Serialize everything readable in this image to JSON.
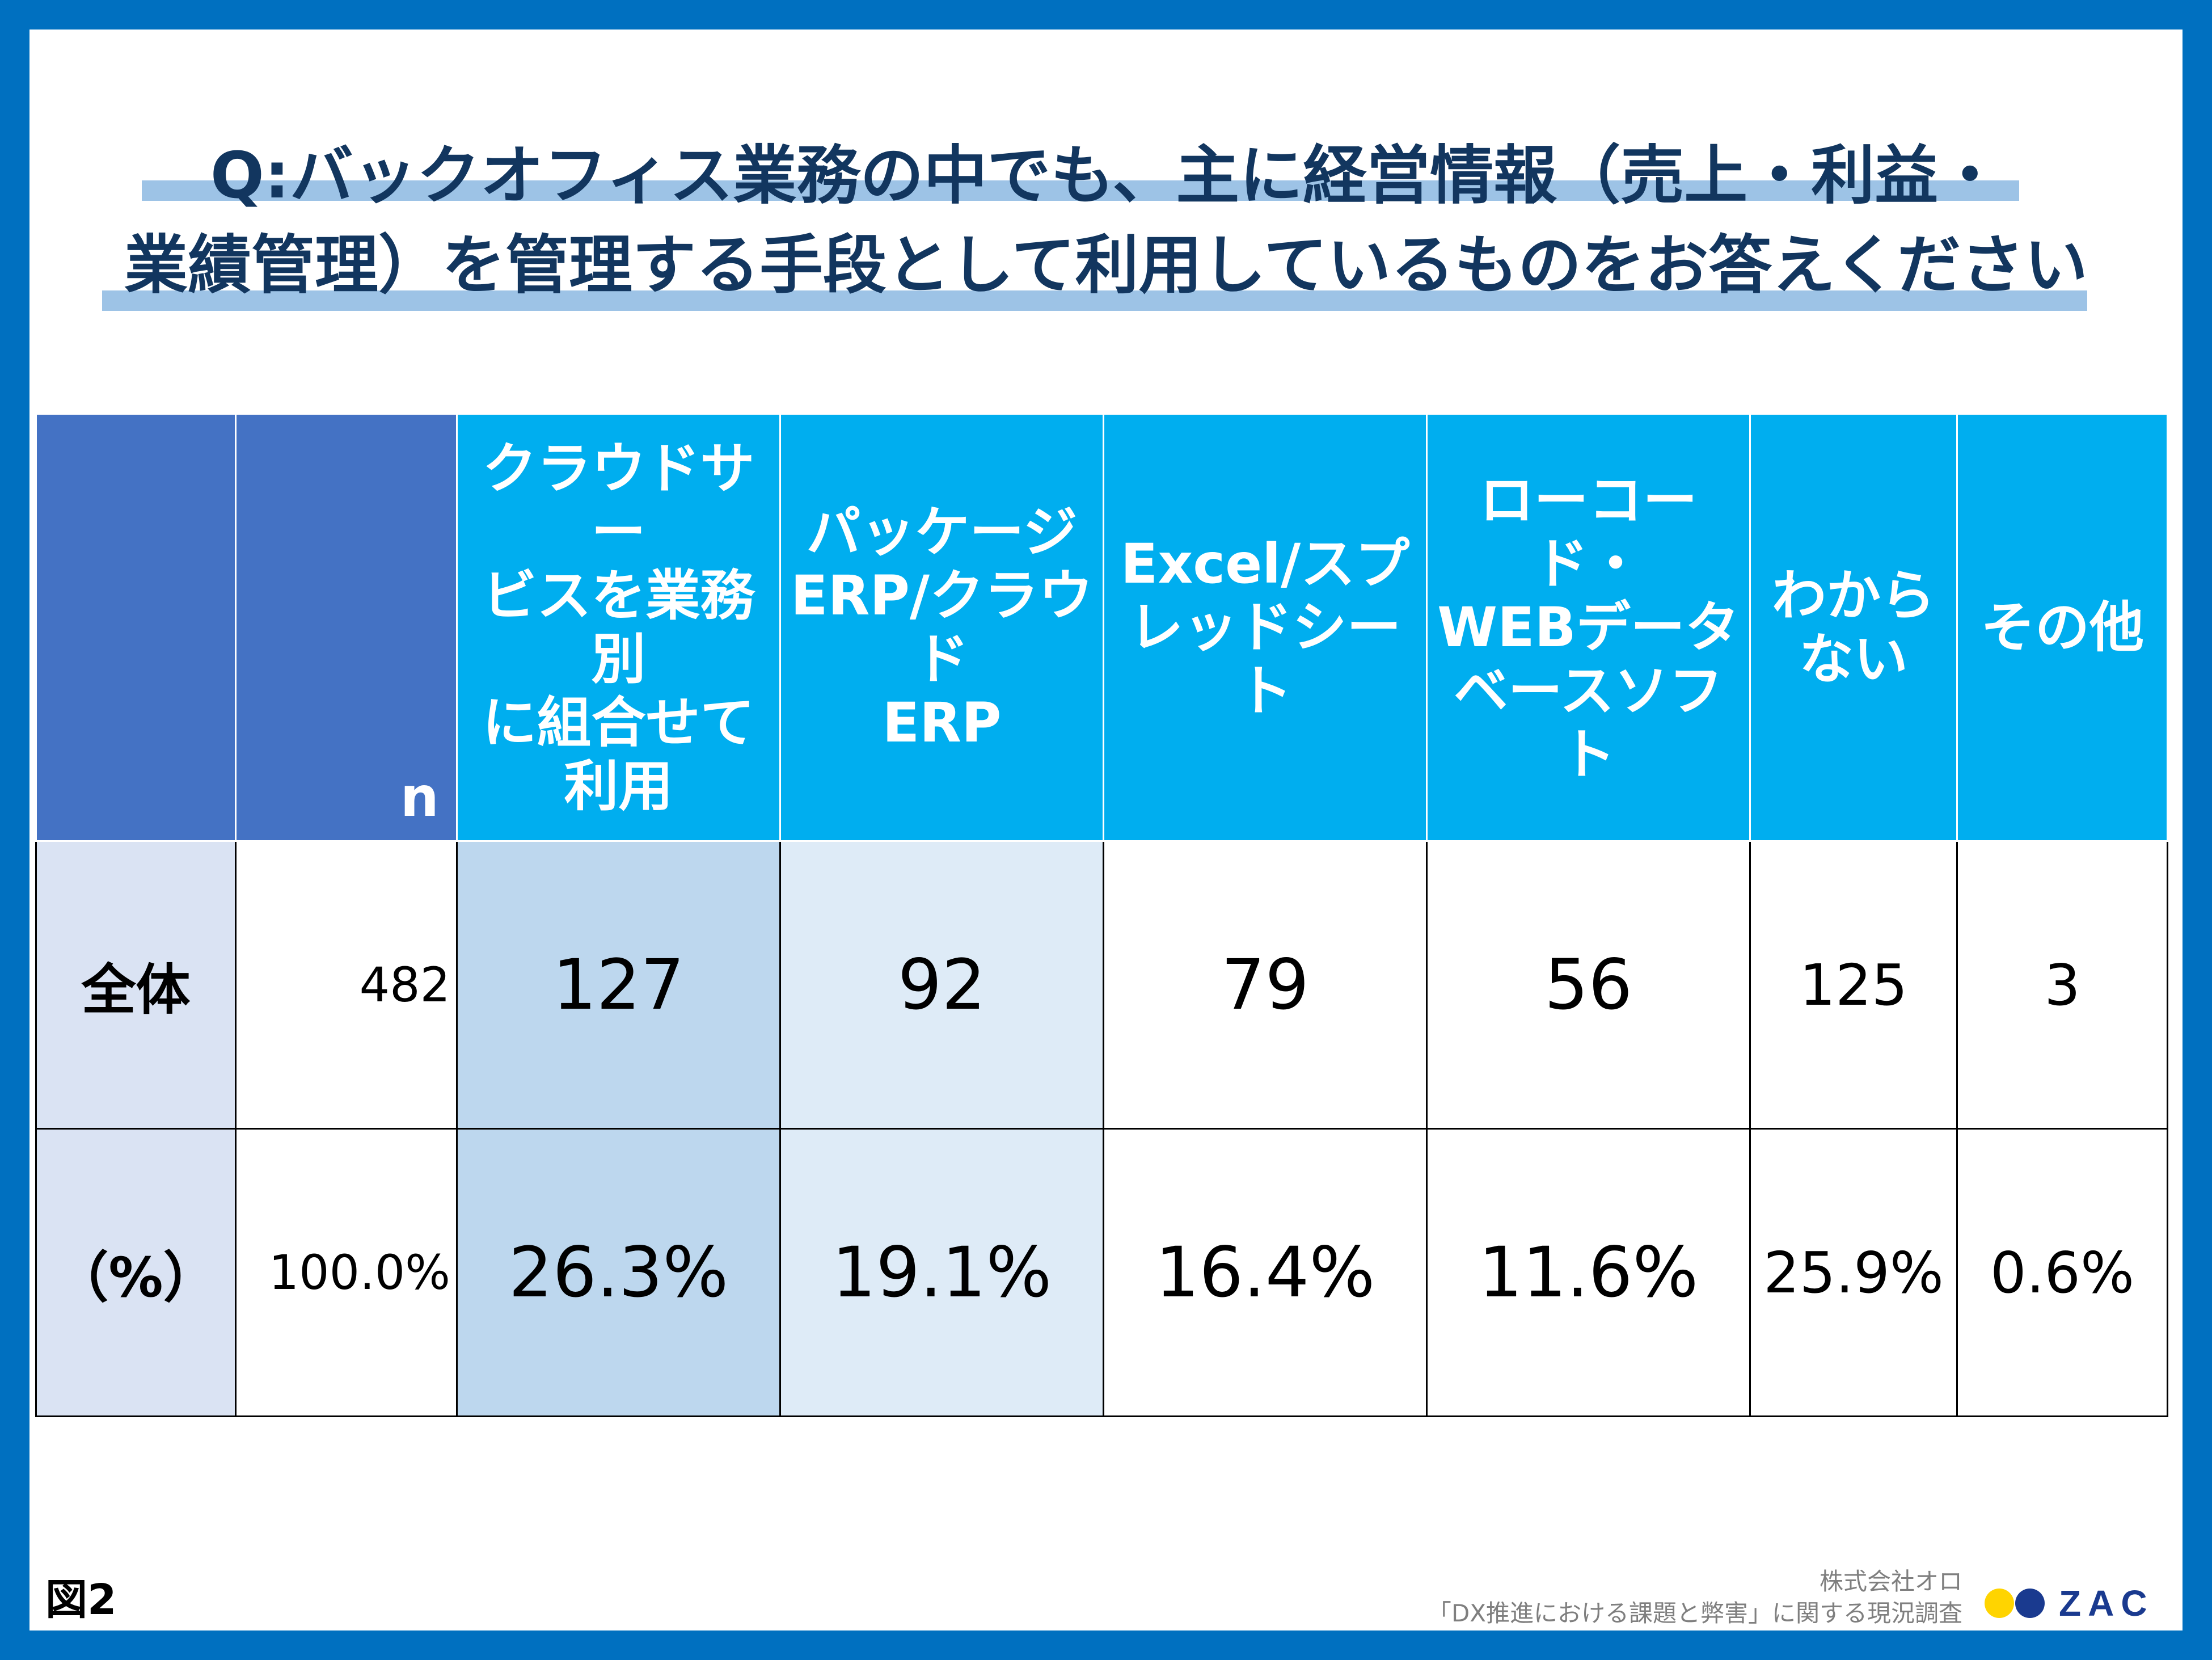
{
  "title": {
    "line1": "Q:バックオフィス業務の中でも、主に経営情報（売上・利益・",
    "line2": "業績管理）を管理する手段として利用しているものをお答えください"
  },
  "table": {
    "header": {
      "row_label": "",
      "n_label": "n",
      "columns": [
        "クラウドサービスを業務別に組合せて利用",
        "パッケージERP/クラウドERP",
        "Excel/スプレッドシート",
        "ローコード・WEBデータベースソフト",
        "わからない",
        "その他"
      ],
      "columns_display": [
        [
          "クラウドサー",
          "ビスを業務別",
          "に組合せて",
          "利用"
        ],
        [
          "パッケージ",
          "ERP/クラウド",
          "ERP"
        ],
        [
          "Excel/スプ",
          "レッドシート"
        ],
        [
          "ローコード・",
          "WEBデータ",
          "ベースソフト"
        ],
        [
          "わから",
          "ない"
        ],
        [
          "その他"
        ]
      ]
    },
    "rows": [
      {
        "label": "全体",
        "n": "482",
        "values": [
          "127",
          "92",
          "79",
          "56",
          "125",
          "3"
        ]
      },
      {
        "label": "（%）",
        "n": "100.0%",
        "values": [
          "26.3%",
          "19.1%",
          "16.4%",
          "11.6%",
          "25.9%",
          "0.6%"
        ]
      }
    ]
  },
  "chart_data": {
    "type": "table",
    "title": "Q:バックオフィス業務の中でも、主に経営情報（売上・利益・業績管理）を管理する手段として利用しているものをお答えください",
    "categories": [
      "クラウドサービスを業務別に組合せて利用",
      "パッケージERP/クラウドERP",
      "Excel/スプレッドシート",
      "ローコード・WEBデータベースソフト",
      "わからない",
      "その他"
    ],
    "n": 482,
    "series": [
      {
        "name": "全体",
        "values": [
          127,
          92,
          79,
          56,
          125,
          3
        ]
      },
      {
        "name": "（%）",
        "values": [
          26.3,
          19.1,
          16.4,
          11.6,
          25.9,
          0.6
        ]
      }
    ]
  },
  "footer": {
    "figure_label": "図2",
    "company": "株式会社オロ",
    "survey": "「DX推進における課題と弊害」に関する現況調査",
    "logo_text": "ZAC"
  },
  "colors": {
    "frame": "#0070c0",
    "title": "#12365f",
    "header_dark": "#4472c4",
    "header_cyan": "#00aeef",
    "row_label_bg": "#dae3f3",
    "col1_bg": "#bdd7ee",
    "col2_bg": "#deebf7",
    "logo_yellow": "#ffd400",
    "logo_navy": "#1a3a8f"
  }
}
